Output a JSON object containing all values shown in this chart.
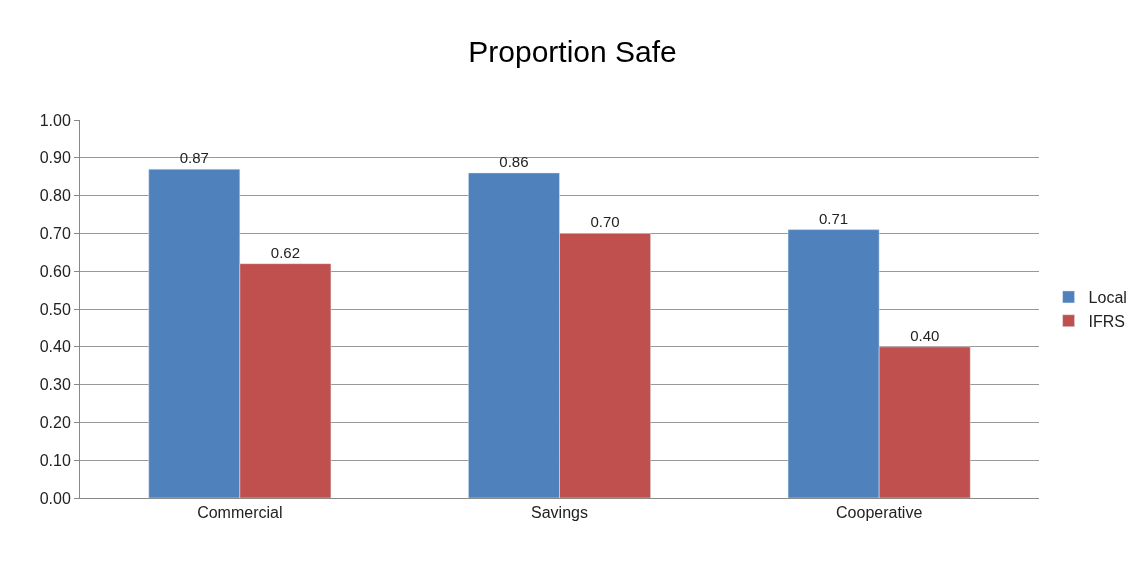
{
  "chart_data": {
    "type": "bar",
    "title": "Proportion Safe",
    "categories": [
      "Commercial",
      "Savings",
      "Cooperative"
    ],
    "series": [
      {
        "name": "Local",
        "color": "#4f81bd",
        "values": [
          0.87,
          0.86,
          0.71
        ],
        "value_labels": [
          "0.87",
          "0.86",
          "0.71"
        ]
      },
      {
        "name": "IFRS",
        "color": "#c0504d",
        "values": [
          0.62,
          0.7,
          0.4
        ],
        "value_labels": [
          "0.62",
          "0.70",
          "0.40"
        ]
      }
    ],
    "ylim": [
      0,
      1
    ],
    "yticks": [
      {
        "value": 0,
        "label": "0.00"
      },
      {
        "value": 0.1,
        "label": "0.10"
      },
      {
        "value": 0.2,
        "label": "0.20"
      },
      {
        "value": 0.3,
        "label": "0.30"
      },
      {
        "value": 0.4,
        "label": "0.40"
      },
      {
        "value": 0.5,
        "label": "0.50"
      },
      {
        "value": 0.6,
        "label": "0.60"
      },
      {
        "value": 0.7,
        "label": "0.70"
      },
      {
        "value": 0.8,
        "label": "0.80"
      },
      {
        "value": 0.9,
        "label": "0.90"
      },
      {
        "value": 1,
        "label": "1.00"
      }
    ],
    "grid": "y",
    "legend": "right"
  }
}
